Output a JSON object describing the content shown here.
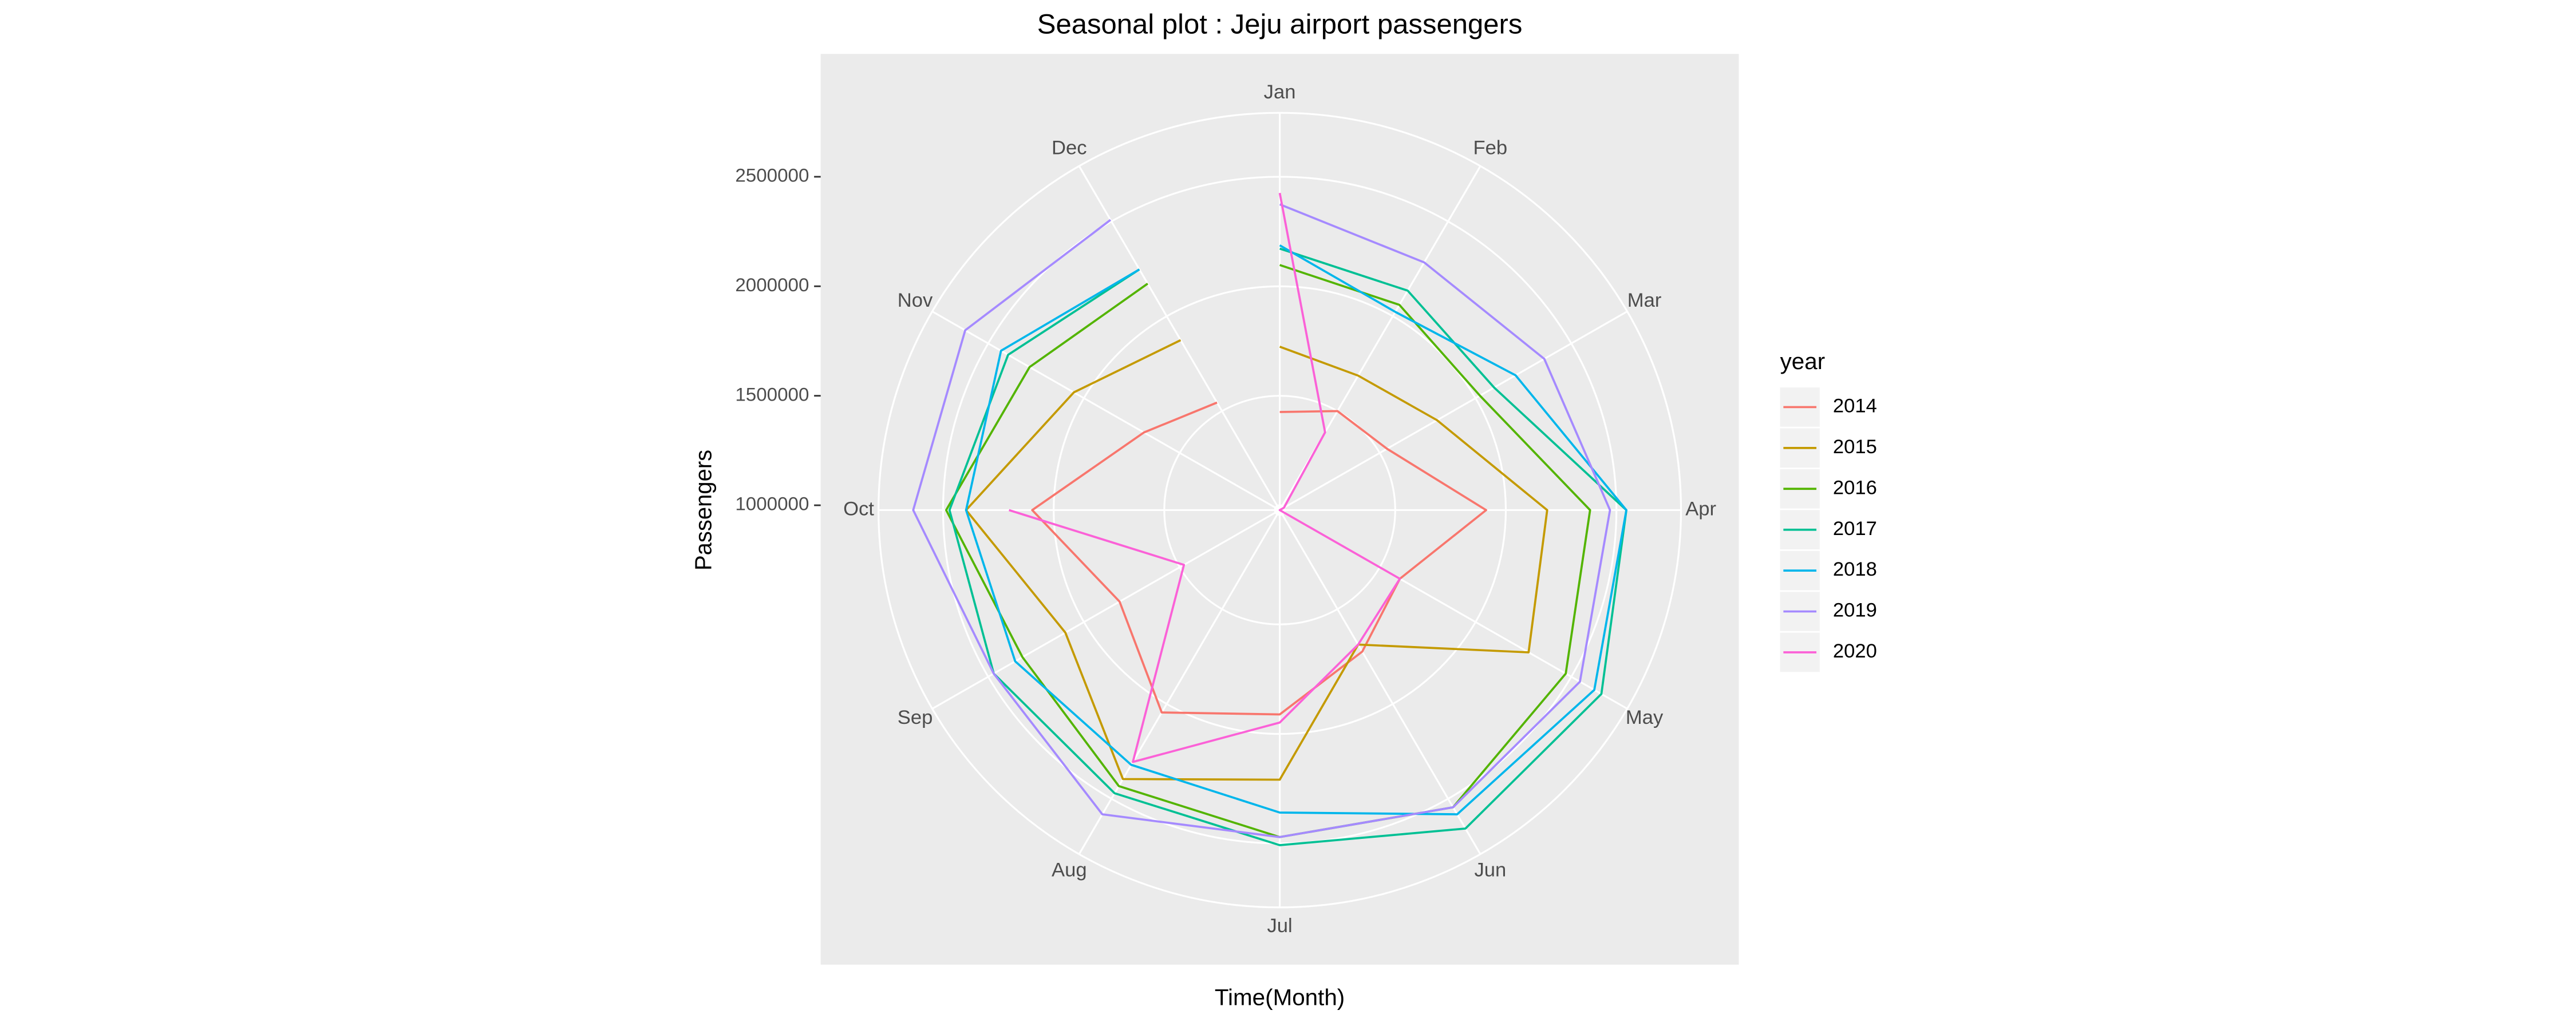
{
  "chart_data": {
    "type": "polar_line",
    "title": "Seasonal plot : Jeju airport passengers",
    "x_label": "Time(Month)",
    "y_label": "Passengers",
    "categories": [
      "Jan",
      "Feb",
      "Mar",
      "Apr",
      "May",
      "Jun",
      "Jul",
      "Aug",
      "Sep",
      "Oct",
      "Nov",
      "Dec"
    ],
    "ylim": [
      978000,
      2792000
    ],
    "yticks": [
      1000000,
      1500000,
      2000000,
      2500000
    ],
    "grid": true,
    "legend_title": "year",
    "legend_position": "right",
    "series": [
      {
        "name": "2014",
        "color": "#F8766D",
        "values": [
          1426000,
          1500000,
          1538000,
          1911000,
          1605000,
          1724000,
          1911000,
          2045000,
          1814000,
          2097000,
          1687000,
          1545000
        ]
      },
      {
        "name": "2015",
        "color": "#C49A00",
        "values": [
          1724000,
          1687000,
          1799000,
          2187000,
          2277000,
          1687000,
          2209000,
          2396000,
          2097000,
          2396000,
          2053000,
          1874000
        ]
      },
      {
        "name": "2016",
        "color": "#53B400",
        "values": [
          2097000,
          2060000,
          2023000,
          2381000,
          2471000,
          2545000,
          2471000,
          2433000,
          2321000,
          2486000,
          2284000,
          2172000
        ]
      },
      {
        "name": "2017",
        "color": "#00C094",
        "values": [
          2172000,
          2135000,
          2097000,
          2545000,
          2657000,
          2657000,
          2508000,
          2471000,
          2471000,
          2471000,
          2396000,
          2247000
        ]
      },
      {
        "name": "2018",
        "color": "#00B6EB",
        "values": [
          2187000,
          2023000,
          2209000,
          2545000,
          2620000,
          2582000,
          2359000,
          2321000,
          2359000,
          2396000,
          2433000,
          2247000
        ]
      },
      {
        "name": "2019",
        "color": "#A58AFF",
        "values": [
          2374000,
          2284000,
          2359000,
          2471000,
          2545000,
          2545000,
          2471000,
          2582000,
          2471000,
          2635000,
          2620000,
          2508000
        ]
      },
      {
        "name": "2020",
        "color": "#FB61D7",
        "values": [
          2426000,
          1388000,
          1000000,
          978000,
          1605000,
          1687000,
          1948000,
          2306000,
          1478000,
          2202000,
          null,
          null
        ]
      }
    ]
  }
}
